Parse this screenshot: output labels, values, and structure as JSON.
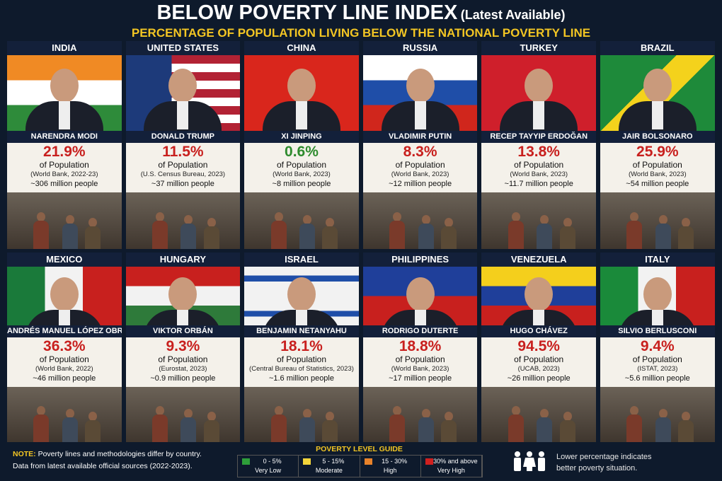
{
  "header": {
    "title": "BELOW POVERTY LINE INDEX",
    "title_note": "(Latest Available)",
    "subtitle": "PERCENTAGE OF POPULATION LIVING BELOW THE NATIONAL POVERTY LINE"
  },
  "cards": [
    {
      "country": "INDIA",
      "leader": "NARENDRA MODI",
      "percent": "21.9%",
      "of": "of Population",
      "source": "(World Bank, 2022-23)",
      "people": "~306 million people",
      "color": "#c8201e"
    },
    {
      "country": "UNITED STATES",
      "leader": "DONALD TRUMP",
      "percent": "11.5%",
      "of": "of Population",
      "source": "(U.S. Census Bureau, 2023)",
      "people": "~37 million people",
      "color": "#c8201e"
    },
    {
      "country": "CHINA",
      "leader": "XI JINPING",
      "percent": "0.6%",
      "of": "of Population",
      "source": "(World Bank, 2023)",
      "people": "~8 million people",
      "color": "#2e8b2e"
    },
    {
      "country": "RUSSIA",
      "leader": "VLADIMIR PUTIN",
      "percent": "8.3%",
      "of": "of Population",
      "source": "(World Bank, 2023)",
      "people": "~12 million people",
      "color": "#c8201e"
    },
    {
      "country": "TURKEY",
      "leader": "RECEP TAYYIP ERDOĞAN",
      "percent": "13.8%",
      "of": "of Population",
      "source": "(World Bank, 2023)",
      "people": "~11.7 million people",
      "color": "#c8201e"
    },
    {
      "country": "BRAZIL",
      "leader": "JAIR BOLSONARO",
      "percent": "25.9%",
      "of": "of Population",
      "source": "(World Bank, 2023)",
      "people": "~54 million people",
      "color": "#c8201e"
    },
    {
      "country": "MEXICO",
      "leader": "ANDRÉS MANUEL LÓPEZ OBRADOR",
      "percent": "36.3%",
      "of": "of Population",
      "source": "(World Bank, 2022)",
      "people": "~46 million people",
      "color": "#c8201e"
    },
    {
      "country": "HUNGARY",
      "leader": "VIKTOR ORBÁN",
      "percent": "9.3%",
      "of": "of Population",
      "source": "(Eurostat, 2023)",
      "people": "~0.9 million people",
      "color": "#c8201e"
    },
    {
      "country": "ISRAEL",
      "leader": "BENJAMIN NETANYAHU",
      "percent": "18.1%",
      "of": "of Population",
      "source": "(Central Bureau of Statistics, 2023)",
      "people": "~1.6 million people",
      "color": "#c8201e"
    },
    {
      "country": "PHILIPPINES",
      "leader": "RODRIGO DUTERTE",
      "percent": "18.8%",
      "of": "of Population",
      "source": "(World Bank, 2023)",
      "people": "~17 million people",
      "color": "#c8201e"
    },
    {
      "country": "VENEZUELA",
      "leader": "HUGO CHÁVEZ",
      "percent": "94.5%",
      "of": "of Population",
      "source": "(UCAB, 2023)",
      "people": "~26 million people",
      "color": "#c8201e"
    },
    {
      "country": "ITALY",
      "leader": "SILVIO BERLUSCONI",
      "percent": "9.4%",
      "of": "of Population",
      "source": "(ISTAT, 2023)",
      "people": "~5.6 million people",
      "color": "#c8201e"
    }
  ],
  "footer": {
    "note_label": "NOTE:",
    "note": "Poverty lines and methodologies differ by country.",
    "note2": "Data from latest available official sources (2022-2023).",
    "guide_title": "POVERTY LEVEL GUIDE",
    "guide": [
      {
        "range": "0 - 5%",
        "label": "Very Low",
        "color": "#2e9e3a"
      },
      {
        "range": "5 - 15%",
        "label": "Moderate",
        "color": "#f2d43a"
      },
      {
        "range": "15 - 30%",
        "label": "High",
        "color": "#e8822a"
      },
      {
        "range": "30% and above",
        "label": "Very High",
        "color": "#d0201f"
      }
    ],
    "remark": "Lower percentage indicates",
    "remark2": "better poverty situation."
  }
}
